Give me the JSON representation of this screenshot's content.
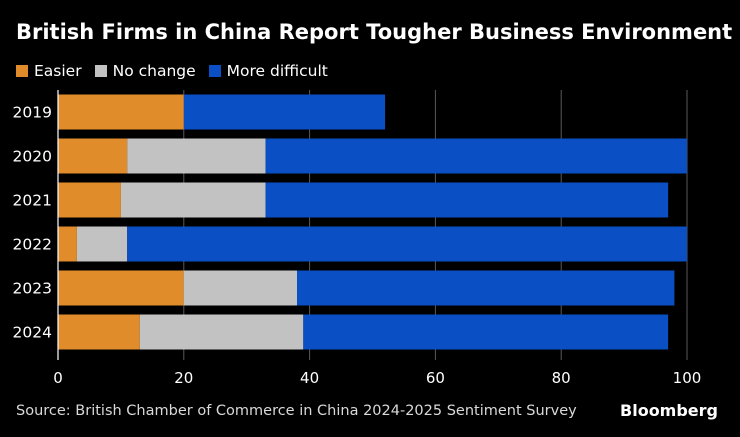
{
  "chart_data": {
    "type": "bar",
    "orientation": "horizontal",
    "stacked": true,
    "title": "British Firms in China Report Tougher Business Environment",
    "categories": [
      "2019",
      "2020",
      "2021",
      "2022",
      "2023",
      "2024"
    ],
    "series": [
      {
        "name": "Easier",
        "color": "#e08c2a",
        "values": [
          20,
          11,
          10,
          3,
          20,
          13
        ]
      },
      {
        "name": "No change",
        "color": "#c2c2c2",
        "values": [
          0,
          22,
          23,
          8,
          18,
          26
        ]
      },
      {
        "name": "More difficult",
        "color": "#0b4fc4",
        "values": [
          32,
          67,
          64,
          89,
          60,
          58
        ]
      }
    ],
    "xlim": [
      0,
      100
    ],
    "xticks": [
      "0",
      "20",
      "40",
      "60",
      "80",
      "100"
    ],
    "xlabel": "",
    "ylabel": "",
    "legend_position": "top-left"
  },
  "source": "Source: British Chamber of Commerce in China 2024-2025 Sentiment Survey",
  "brand": "Bloomberg"
}
